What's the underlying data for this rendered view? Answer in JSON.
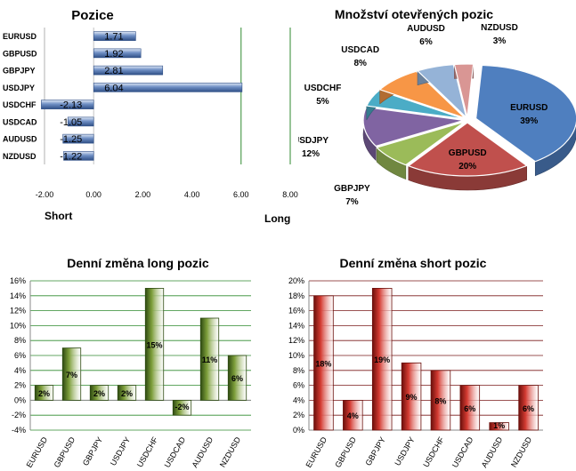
{
  "colors": {
    "hbar": "#6f8fc4",
    "hbar_edge": "#2f4f86",
    "long_bar": "#7d9e3a",
    "long_edge": "#2e4a12",
    "short_bar": "#d43b32",
    "short_edge": "#6b0f0b",
    "green_grid": "#2f8a2f",
    "red_grid": "#7a1a1a"
  },
  "chart_data": [
    {
      "type": "bar",
      "orientation": "horizontal",
      "title": "Pozice",
      "categories": [
        "EURUSD",
        "GBPUSD",
        "GBPJPY",
        "USDJPY",
        "USDCHF",
        "USDCAD",
        "AUDUSD",
        "NZDUSD"
      ],
      "values": [
        1.71,
        1.92,
        2.81,
        6.04,
        -2.13,
        -1.05,
        -1.25,
        -1.22
      ],
      "labels": [
        "1.71",
        "1.92",
        "2.81",
        "6.04",
        "-2.13",
        "-1.05",
        "-1.25",
        "-1.22"
      ],
      "xlim": [
        -2,
        8
      ],
      "xticks": [
        "-2.00",
        "0.00",
        "2.00",
        "4.00",
        "6.00",
        "8.00"
      ],
      "left_caption": "Short",
      "right_caption": "Long"
    },
    {
      "type": "pie",
      "title": "Množství otevřených pozic",
      "slices": [
        {
          "name": "EURUSD",
          "value": 39,
          "label": "39%",
          "color": "#4f7fbf"
        },
        {
          "name": "GBPUSD",
          "value": 20,
          "label": "20%",
          "color": "#c0504d"
        },
        {
          "name": "GBPJPY",
          "value": 7,
          "label": "7%",
          "color": "#9bbb59"
        },
        {
          "name": "USDJPY",
          "value": 12,
          "label": "12%",
          "color": "#8064a2"
        },
        {
          "name": "USDCHF",
          "value": 5,
          "label": "5%",
          "color": "#4bacc6"
        },
        {
          "name": "USDCAD",
          "value": 8,
          "label": "8%",
          "color": "#f79646"
        },
        {
          "name": "AUDUSD",
          "value": 6,
          "label": "6%",
          "color": "#95b3d7"
        },
        {
          "name": "NZDUSD",
          "value": 3,
          "label": "3%",
          "color": "#d99694"
        }
      ]
    },
    {
      "type": "bar",
      "title": "Denní změna long pozic",
      "categories": [
        "EURUSD",
        "GBPUSD",
        "GBPJPY",
        "USDJPY",
        "USDCHF",
        "USDCAD",
        "AUDUSD",
        "NZDUSD"
      ],
      "values": [
        2,
        7,
        2,
        2,
        15,
        -2,
        11,
        6
      ],
      "labels": [
        "2%",
        "7%",
        "2%",
        "2%",
        "15%",
        "-2%",
        "11%",
        "6%"
      ],
      "ylim": [
        -4,
        16
      ],
      "yticks": [
        "-4%",
        "-2%",
        "0%",
        "2%",
        "4%",
        "6%",
        "8%",
        "10%",
        "12%",
        "14%",
        "16%"
      ]
    },
    {
      "type": "bar",
      "title": "Denní změna short pozic",
      "categories": [
        "EURUSD",
        "GBPUSD",
        "GBPJPY",
        "USDJPY",
        "USDCHF",
        "USDCAD",
        "AUDUSD",
        "NZDUSD"
      ],
      "values": [
        18,
        4,
        19,
        9,
        8,
        6,
        1,
        6
      ],
      "labels": [
        "18%",
        "4%",
        "19%",
        "9%",
        "8%",
        "6%",
        "1%",
        "6%"
      ],
      "ylim": [
        0,
        20
      ],
      "yticks": [
        "0%",
        "2%",
        "4%",
        "6%",
        "8%",
        "10%",
        "12%",
        "14%",
        "16%",
        "18%",
        "20%"
      ]
    }
  ]
}
